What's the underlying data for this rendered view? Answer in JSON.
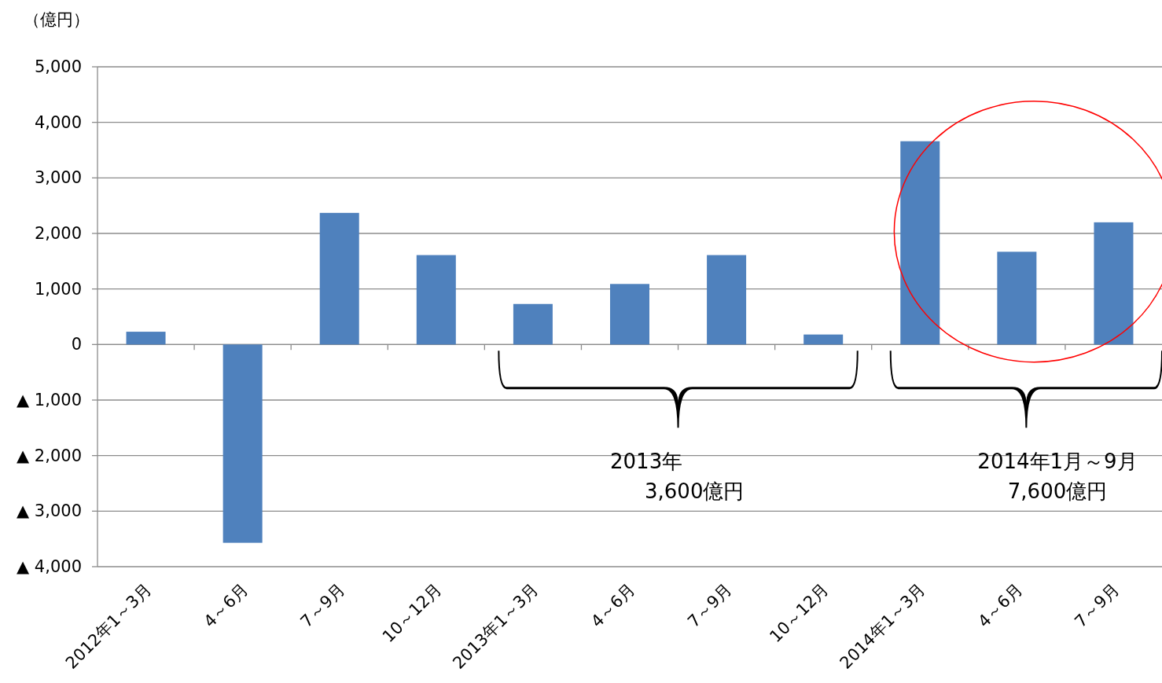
{
  "chart_data": {
    "type": "bar",
    "ylabel": "（億円）",
    "categories": [
      "2012年1～3月",
      "4～6月",
      "7～9月",
      "10～12月",
      "2013年1～3月",
      "4～6月",
      "7～9月",
      "10～12月",
      "2014年1～3月",
      "4～6月",
      "7～9月"
    ],
    "values": [
      230,
      -3570,
      2370,
      1610,
      730,
      1090,
      1610,
      180,
      3660,
      1670,
      2200
    ],
    "color": "#4f81bd",
    "ylim": [
      -4000,
      5000
    ],
    "yticks": [
      {
        "value": -4000,
        "label": "▲ 4,000"
      },
      {
        "value": -3000,
        "label": "▲ 3,000"
      },
      {
        "value": -2000,
        "label": "▲ 2,000"
      },
      {
        "value": -1000,
        "label": "▲ 1,000"
      },
      0,
      {
        "value": 1000,
        "label": "1,000"
      },
      {
        "value": 2000,
        "label": "2,000"
      },
      {
        "value": 3000,
        "label": "3,000"
      },
      {
        "value": 4000,
        "label": "4,000"
      },
      {
        "value": 5000,
        "label": "5,000"
      }
    ],
    "grid": "y",
    "annotations": [
      "2013年\n3,600億円",
      "2014年1月～9月\n7,600億円"
    ]
  }
}
